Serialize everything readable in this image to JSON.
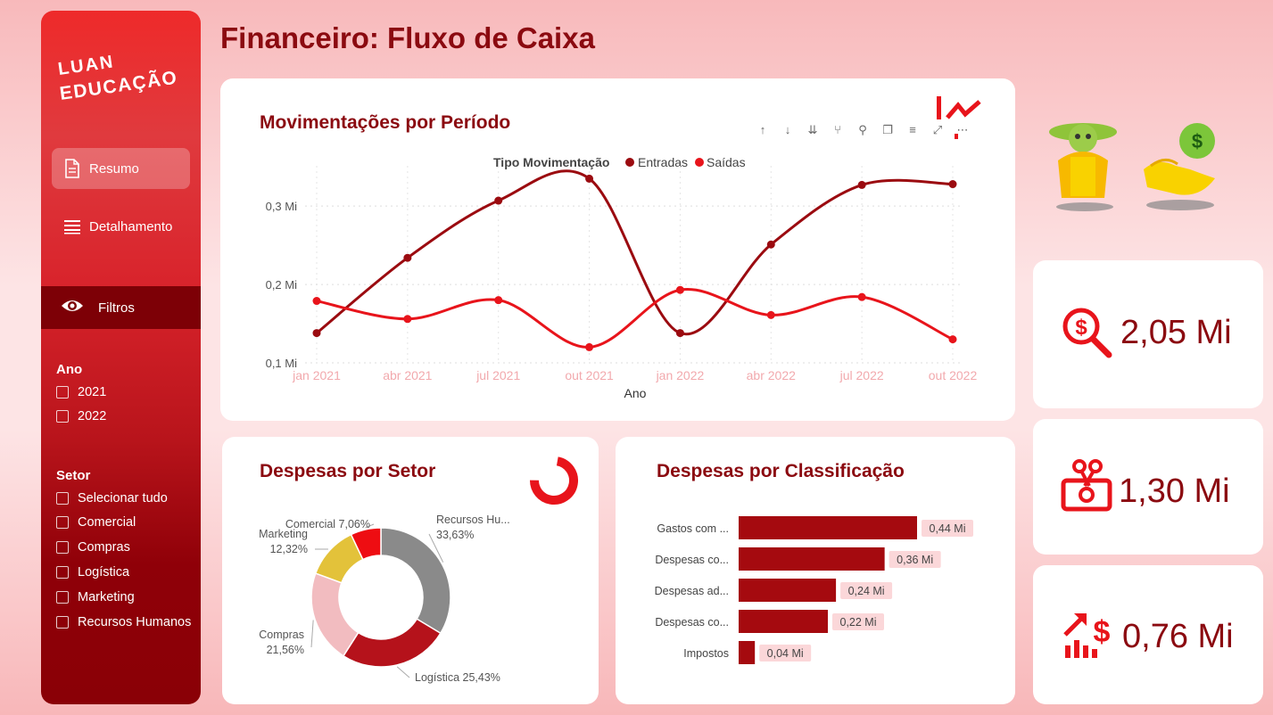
{
  "sidebar": {
    "logo_line1": "LUAN",
    "logo_line2": "EDUCAÇÃO",
    "nav": [
      {
        "label": "Resumo",
        "icon": "document-icon"
      },
      {
        "label": "Detalhamento",
        "icon": "list-icon"
      }
    ],
    "filters_label": "Filtros",
    "filters_icon": "eye-icon",
    "ano_title": "Ano",
    "ano_options": [
      "2021",
      "2022"
    ],
    "setor_title": "Setor",
    "setor_options": [
      "Selecionar tudo",
      "Comercial",
      "Compras",
      "Logística",
      "Marketing",
      "Recursos Humanos"
    ]
  },
  "page_title": "Financeiro: Fluxo de Caixa",
  "line_card": {
    "title": "Movimentações por Período",
    "legend_title": "Tipo Movimentação",
    "toolbar_icons": [
      "arrow-up-icon",
      "arrow-down-icon",
      "double-arrow-down-icon",
      "fork-icon",
      "pin-icon",
      "copy-icon",
      "filter-icon",
      "focus-icon",
      "more-icon"
    ]
  },
  "pie_card": {
    "title": "Despesas por Setor"
  },
  "bar_card": {
    "title": "Despesas por Classificação"
  },
  "kpis": [
    {
      "value": "2,05 Mi",
      "icon": "money-search-icon"
    },
    {
      "value": "1,30 Mi",
      "icon": "cut-money-icon"
    },
    {
      "value": "0,76 Mi",
      "icon": "growth-money-icon"
    }
  ],
  "colors": {
    "entradas": "#9b0b10",
    "saidas": "#e8141b",
    "title": "#8b0a10",
    "bar": "#a50a0f"
  },
  "chart_data": [
    {
      "type": "line",
      "xlabel": "Ano",
      "ylabel": "",
      "x": [
        "jan 2021",
        "abr 2021",
        "jul 2021",
        "out 2021",
        "jan 2022",
        "abr 2022",
        "jul 2022",
        "out 2022"
      ],
      "yticks": [
        "0,1 Mi",
        "0,2 Mi",
        "0,3 Mi"
      ],
      "ylim": [
        0.1,
        0.34
      ],
      "series": [
        {
          "name": "Entradas",
          "values": [
            0.138,
            0.234,
            0.307,
            0.335,
            0.138,
            0.251,
            0.327,
            0.328
          ]
        },
        {
          "name": "Saídas",
          "values": [
            0.179,
            0.156,
            0.18,
            0.12,
            0.193,
            0.161,
            0.184,
            0.13
          ]
        }
      ],
      "grid": true,
      "legend_position": "top"
    },
    {
      "type": "pie",
      "donut": true,
      "slices": [
        {
          "name": "Recursos Hu...",
          "value": 33.63,
          "label": "33,63%",
          "color": "#8a8a8a"
        },
        {
          "name": "Logística",
          "value": 25.43,
          "label": "25,43%",
          "color": "#b5121b"
        },
        {
          "name": "Compras",
          "value": 21.56,
          "label": "21,56%",
          "color": "#f2bcc0"
        },
        {
          "name": "Marketing",
          "value": 12.32,
          "label": "12,32%",
          "color": "#e3c23a"
        },
        {
          "name": "Comercial",
          "value": 7.06,
          "label": "7,06%",
          "color": "#ee0d12"
        }
      ]
    },
    {
      "type": "bar",
      "orientation": "horizontal",
      "categories": [
        "Gastos com ...",
        "Despesas co...",
        "Despesas ad...",
        "Despesas co...",
        "Impostos"
      ],
      "values": [
        0.44,
        0.36,
        0.24,
        0.22,
        0.04
      ],
      "labels": [
        "0,44 Mi",
        "0,36 Mi",
        "0,24 Mi",
        "0,22 Mi",
        "0,04 Mi"
      ]
    }
  ]
}
